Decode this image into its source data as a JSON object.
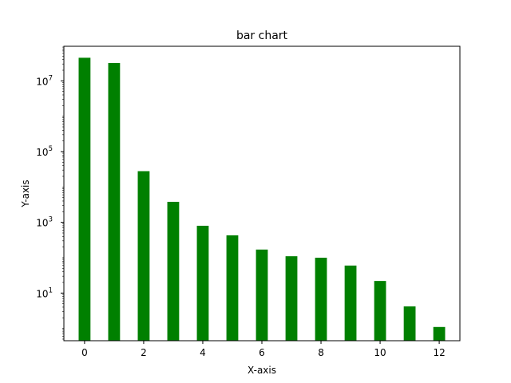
{
  "chart_data": {
    "type": "bar",
    "title": "bar chart",
    "xlabel": "X-axis",
    "ylabel": "Y-axis",
    "yscale": "log",
    "grid": false,
    "bar_color": "#008000",
    "x": [
      0,
      1,
      2,
      3,
      4,
      5,
      6,
      7,
      8,
      9,
      10,
      11,
      12
    ],
    "values": [
      45000000,
      32000000,
      28000,
      3800,
      800,
      430,
      170,
      110,
      100,
      60,
      22,
      4.2,
      1.1
    ],
    "xlim": [
      -0.7,
      12.7
    ],
    "ylim": [
      0.45,
      95000000
    ],
    "xticks": [
      0,
      2,
      4,
      6,
      8,
      10,
      12
    ],
    "yticks": [
      {
        "value": 10,
        "base": "10",
        "exp": "1"
      },
      {
        "value": 1000,
        "base": "10",
        "exp": "3"
      },
      {
        "value": 100000,
        "base": "10",
        "exp": "5"
      },
      {
        "value": 10000000,
        "base": "10",
        "exp": "7"
      }
    ]
  }
}
